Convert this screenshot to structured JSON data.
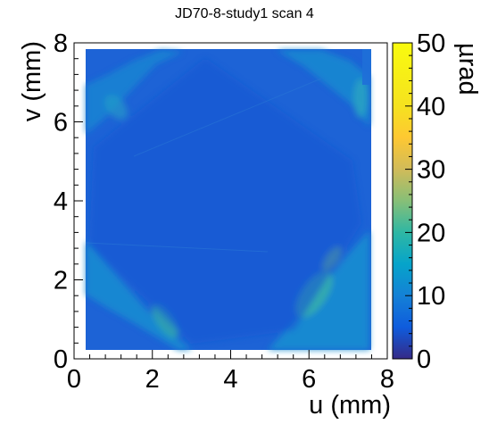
{
  "chart_data": {
    "type": "heatmap",
    "title": "JD70-8-study1 scan 4",
    "xlabel": "u (mm)",
    "ylabel": "v (mm)",
    "zlabel": "µrad",
    "xlim": [
      0,
      8
    ],
    "ylim": [
      0,
      8
    ],
    "zlim": [
      0,
      50
    ],
    "x_ticks": [
      "0",
      "2",
      "4",
      "6",
      "8"
    ],
    "y_ticks": [
      "0",
      "2",
      "4",
      "6",
      "8"
    ],
    "z_ticks": [
      "0",
      "10",
      "20",
      "30",
      "40",
      "50"
    ],
    "colormap": "parula",
    "data_extent": {
      "u": [
        0.3,
        7.5
      ],
      "v": [
        0.2,
        7.8
      ]
    },
    "field_description": "central diamond region ~6-9 µrad; elevated corner bands ~14-25 µrad; hot spots up to ~30 µrad near lower-right",
    "grid": false
  }
}
